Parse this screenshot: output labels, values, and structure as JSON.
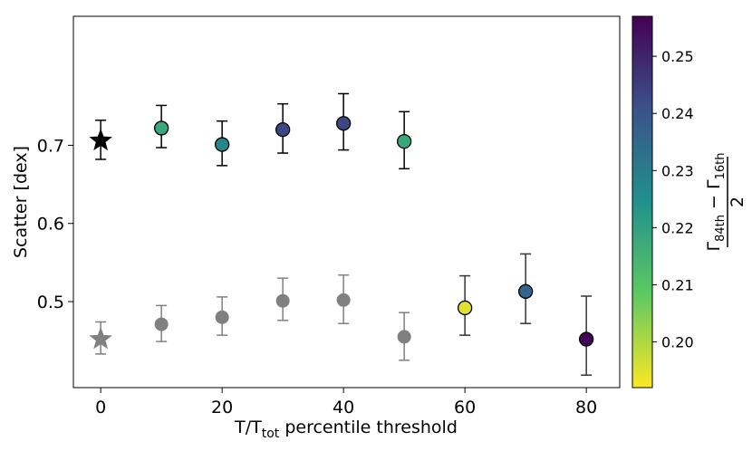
{
  "chart_data": {
    "type": "scatter",
    "xlabel": {
      "main": "T/T",
      "sub": "tot",
      "rest": " percentile threshold"
    },
    "ylabel": "Scatter [dex]",
    "xlim": [
      -4.5,
      85.5
    ],
    "ylim": [
      0.39,
      0.865
    ],
    "xticks": [
      0,
      20,
      40,
      60,
      80
    ],
    "yticks": [
      0.5,
      0.6,
      0.7
    ],
    "ytick_labels": [
      "0.5",
      "0.6",
      "0.7"
    ],
    "xtick_labels": [
      "0",
      "20",
      "40",
      "60",
      "80"
    ],
    "series": [
      {
        "name": "upper",
        "reference": {
          "x": 0,
          "y": 0.706,
          "err_low": 0.682,
          "err_high": 0.732,
          "marker": "star",
          "color": "#000000"
        },
        "points": [
          {
            "x": 10,
            "y": 0.722,
            "err_low": 0.697,
            "err_high": 0.751,
            "c": 0.218
          },
          {
            "x": 20,
            "y": 0.701,
            "err_low": 0.674,
            "err_high": 0.731,
            "c": 0.227
          },
          {
            "x": 30,
            "y": 0.72,
            "err_low": 0.69,
            "err_high": 0.753,
            "c": 0.243
          },
          {
            "x": 40,
            "y": 0.728,
            "err_low": 0.694,
            "err_high": 0.766,
            "c": 0.243
          },
          {
            "x": 50,
            "y": 0.705,
            "err_low": 0.67,
            "err_high": 0.743,
            "c": 0.218
          }
        ]
      },
      {
        "name": "lower",
        "reference": {
          "x": 0,
          "y": 0.452,
          "err_low": 0.433,
          "err_high": 0.474,
          "marker": "star",
          "color": "#808080"
        },
        "points": [
          {
            "x": 10,
            "y": 0.471,
            "err_low": 0.449,
            "err_high": 0.495,
            "color": "#808080"
          },
          {
            "x": 20,
            "y": 0.48,
            "err_low": 0.457,
            "err_high": 0.506,
            "color": "#808080"
          },
          {
            "x": 30,
            "y": 0.501,
            "err_low": 0.476,
            "err_high": 0.53,
            "color": "#808080"
          },
          {
            "x": 40,
            "y": 0.502,
            "err_low": 0.472,
            "err_high": 0.534,
            "color": "#808080"
          },
          {
            "x": 50,
            "y": 0.455,
            "err_low": 0.425,
            "err_high": 0.486,
            "color": "#808080"
          },
          {
            "x": 60,
            "y": 0.492,
            "err_low": 0.457,
            "err_high": 0.533,
            "c": 0.195
          },
          {
            "x": 70,
            "y": 0.513,
            "err_low": 0.472,
            "err_high": 0.561,
            "c": 0.236
          },
          {
            "x": 80,
            "y": 0.452,
            "err_low": 0.406,
            "err_high": 0.507,
            "c": 0.256
          }
        ]
      }
    ],
    "colorbar": {
      "cmap": "viridis_r",
      "min": 0.192,
      "max": 0.257,
      "ticks": [
        0.2,
        0.21,
        0.22,
        0.23,
        0.24,
        0.25
      ],
      "tick_labels": [
        "0.20",
        "0.21",
        "0.22",
        "0.23",
        "0.24",
        "0.25"
      ],
      "label": {
        "symbol": "Γ",
        "sub1": "84th",
        "minus": "−",
        "sub2": "16th",
        "denominator": "2"
      }
    }
  }
}
